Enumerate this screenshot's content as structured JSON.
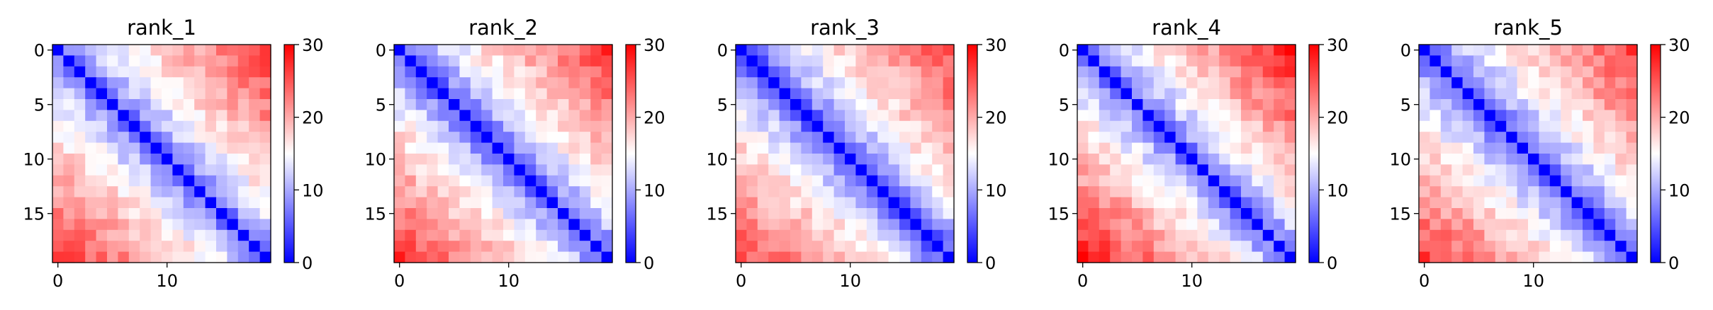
{
  "chart_data": [
    {
      "type": "heatmap",
      "title": "rank_1",
      "size": 20,
      "x_ticks": [
        "0",
        "10"
      ],
      "y_ticks": [
        "0",
        "5",
        "10",
        "15"
      ],
      "colorbar": {
        "min": 0,
        "max": 30,
        "ticks": [
          "0",
          "10",
          "20",
          "30"
        ],
        "colormap": "bwr"
      },
      "offdiag": [
        7.0,
        9.5,
        11.5,
        12.8,
        14.0,
        15.0,
        16.0,
        16.8,
        17.5,
        18.0,
        18.8,
        19.4,
        20.0,
        20.5,
        21.0,
        21.6,
        22.2,
        23.0,
        24.0
      ],
      "edge": 3
    },
    {
      "type": "heatmap",
      "title": "rank_2",
      "size": 20,
      "x_ticks": [
        "0",
        "10"
      ],
      "y_ticks": [
        "0",
        "5",
        "10",
        "15"
      ],
      "colorbar": {
        "min": 0,
        "max": 30,
        "ticks": [
          "0",
          "10",
          "20",
          "30"
        ],
        "colormap": "bwr"
      },
      "offdiag": [
        6.5,
        9.0,
        11.0,
        12.5,
        13.8,
        15.0,
        16.0,
        16.8,
        17.5,
        18.2,
        19.0,
        19.6,
        20.2,
        20.8,
        21.4,
        22.0,
        22.6,
        23.4,
        24.2
      ],
      "edge": 2.5
    },
    {
      "type": "heatmap",
      "title": "rank_3",
      "size": 20,
      "x_ticks": [
        "0",
        "10"
      ],
      "y_ticks": [
        "0",
        "5",
        "10",
        "15"
      ],
      "colorbar": {
        "min": 0,
        "max": 30,
        "ticks": [
          "0",
          "10",
          "20",
          "30"
        ],
        "colormap": "bwr"
      },
      "offdiag": [
        6.0,
        8.5,
        10.5,
        12.0,
        13.5,
        14.6,
        15.6,
        16.4,
        17.2,
        17.9,
        18.6,
        19.2,
        19.8,
        20.4,
        21.0,
        21.6,
        22.2,
        22.8,
        23.5
      ],
      "edge": 2
    },
    {
      "type": "heatmap",
      "title": "rank_4",
      "size": 20,
      "x_ticks": [
        "0",
        "10"
      ],
      "y_ticks": [
        "0",
        "5",
        "10",
        "15"
      ],
      "colorbar": {
        "min": 0,
        "max": 30,
        "ticks": [
          "0",
          "10",
          "20",
          "30"
        ],
        "colormap": "bwr"
      },
      "offdiag": [
        7.0,
        9.5,
        11.5,
        13.0,
        14.3,
        15.5,
        16.5,
        17.3,
        18.0,
        18.8,
        19.5,
        20.2,
        20.9,
        21.6,
        22.2,
        22.9,
        23.6,
        24.4,
        25.2
      ],
      "edge": 3.5
    },
    {
      "type": "heatmap",
      "title": "rank_5",
      "size": 20,
      "x_ticks": [
        "0",
        "10"
      ],
      "y_ticks": [
        "0",
        "5",
        "10",
        "15"
      ],
      "colorbar": {
        "min": 0,
        "max": 30,
        "ticks": [
          "0",
          "10",
          "20",
          "30"
        ],
        "colormap": "bwr"
      },
      "offdiag": [
        6.0,
        8.5,
        10.5,
        12.0,
        13.3,
        14.5,
        15.5,
        16.4,
        17.2,
        18.0,
        18.7,
        19.4,
        20.0,
        20.7,
        21.3,
        22.0,
        22.6,
        23.3,
        24.0
      ],
      "edge": 2.5
    }
  ],
  "colors": {
    "low": "#0000ff",
    "mid": "#ffffff",
    "high": "#ff0000"
  }
}
